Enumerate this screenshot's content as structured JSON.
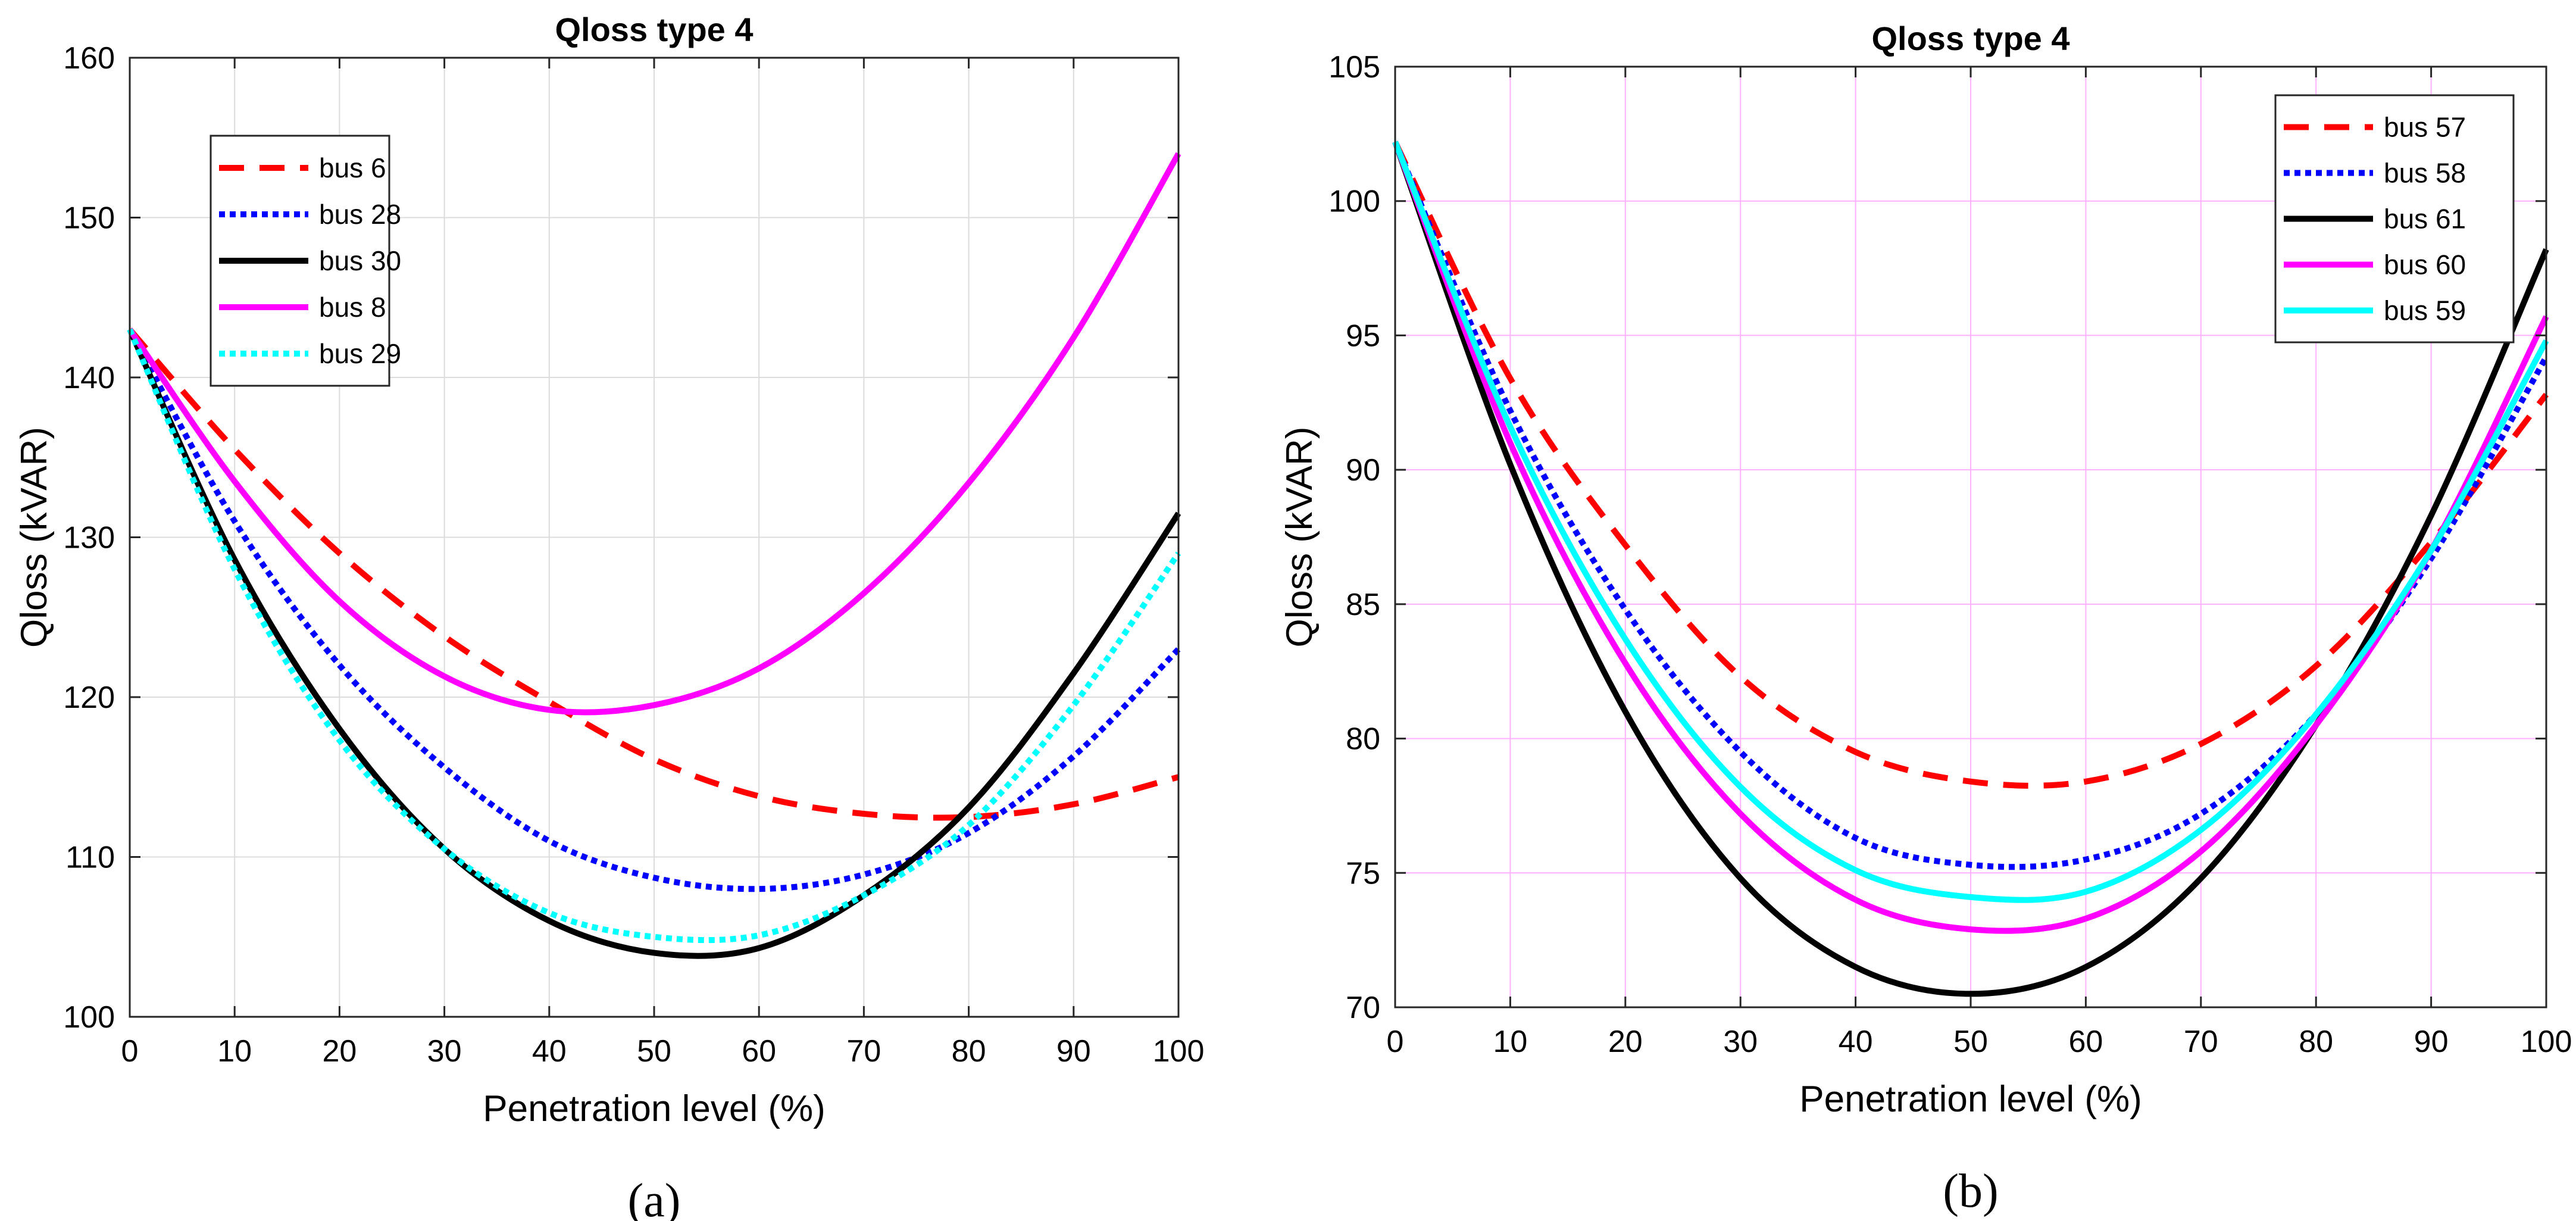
{
  "chart_data": [
    {
      "id": "a",
      "type": "line",
      "panel_label": "(a)",
      "title": "Qloss type 4",
      "xlabel": "Penetration level (%)",
      "ylabel": "Qloss (kVAR)",
      "xlim": [
        0,
        100
      ],
      "ylim": [
        100,
        160
      ],
      "x_ticks": [
        0,
        10,
        20,
        30,
        40,
        50,
        60,
        70,
        80,
        90,
        100
      ],
      "y_ticks": [
        100,
        110,
        120,
        130,
        140,
        150,
        160
      ],
      "grid": true,
      "grid_color": "#dcdcdc",
      "legend_position": "top-left",
      "x": [
        0,
        10,
        20,
        30,
        40,
        50,
        60,
        70,
        80,
        90,
        100
      ],
      "series": [
        {
          "name": "bus 6",
          "color": "#ff0000",
          "style": "dashed",
          "values": [
            143.0,
            135.5,
            129.0,
            123.8,
            119.7,
            116.1,
            113.8,
            112.7,
            112.5,
            113.3,
            115.0
          ]
        },
        {
          "name": "bus 28",
          "color": "#0000ff",
          "style": "dotted",
          "values": [
            143.0,
            131.0,
            122.0,
            115.6,
            111.0,
            108.7,
            108.0,
            108.9,
            111.5,
            116.3,
            123.0
          ]
        },
        {
          "name": "bus 30",
          "color": "#000000",
          "style": "solid",
          "values": [
            143.0,
            128.6,
            118.0,
            110.5,
            106.0,
            104.0,
            104.3,
            107.6,
            113.1,
            121.5,
            131.5
          ]
        },
        {
          "name": "bus 8",
          "color": "#ff00ff",
          "style": "solid",
          "values": [
            143.0,
            133.5,
            126.0,
            121.3,
            119.2,
            119.5,
            121.8,
            126.5,
            133.4,
            142.5,
            154.0
          ]
        },
        {
          "name": "bus 29",
          "color": "#00ffff",
          "style": "dotted",
          "values": [
            143.0,
            128.0,
            117.3,
            110.5,
            106.5,
            105.0,
            105.1,
            107.6,
            112.0,
            119.5,
            129.0
          ]
        }
      ]
    },
    {
      "id": "b",
      "type": "line",
      "panel_label": "(b)",
      "title": "Qloss type 4",
      "xlabel": "Penetration level (%)",
      "ylabel": "Qloss (kVAR)",
      "xlim": [
        0,
        100
      ],
      "ylim": [
        70,
        105
      ],
      "x_ticks": [
        0,
        10,
        20,
        30,
        40,
        50,
        60,
        70,
        80,
        90,
        100
      ],
      "y_ticks": [
        70,
        75,
        80,
        85,
        90,
        95,
        100,
        105
      ],
      "grid": true,
      "grid_color": "#ffb0ff",
      "legend_position": "top-right",
      "x": [
        0,
        10,
        20,
        30,
        40,
        50,
        60,
        70,
        80,
        90,
        100
      ],
      "series": [
        {
          "name": "bus 57",
          "color": "#ff0000",
          "style": "dashed",
          "values": [
            102.2,
            93.4,
            87.2,
            82.3,
            79.5,
            78.4,
            78.4,
            79.8,
            82.7,
            87.3,
            92.8
          ]
        },
        {
          "name": "bus 58",
          "color": "#0000ff",
          "style": "dotted",
          "values": [
            102.2,
            92.2,
            84.8,
            79.5,
            76.3,
            75.3,
            75.5,
            77.2,
            80.9,
            86.7,
            94.2
          ]
        },
        {
          "name": "bus 61",
          "color": "#000000",
          "style": "solid",
          "values": [
            102.2,
            90.2,
            81.0,
            74.8,
            71.5,
            70.5,
            71.5,
            74.8,
            80.5,
            88.3,
            98.2
          ]
        },
        {
          "name": "bus 60",
          "color": "#ff00ff",
          "style": "solid",
          "values": [
            102.2,
            91.0,
            82.8,
            77.2,
            74.0,
            72.9,
            73.3,
            75.8,
            80.5,
            87.0,
            95.7
          ]
        },
        {
          "name": "bus 59",
          "color": "#00ffff",
          "style": "solid",
          "values": [
            102.2,
            91.6,
            83.7,
            78.2,
            75.1,
            74.1,
            74.3,
            76.6,
            80.9,
            87.0,
            94.8
          ]
        }
      ]
    }
  ]
}
